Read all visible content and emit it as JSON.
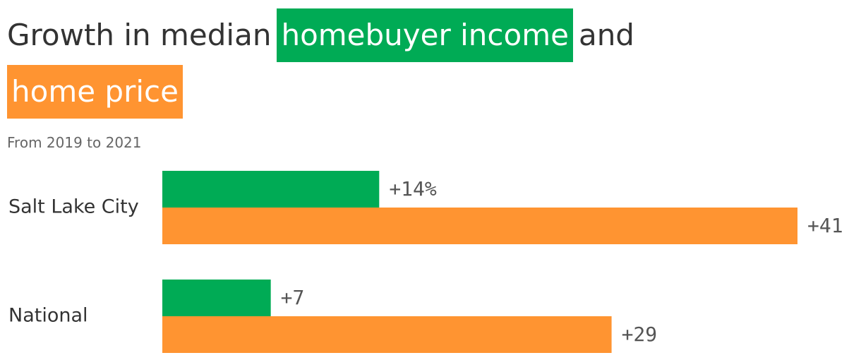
{
  "chart_data": {
    "type": "hbar",
    "title_parts": [
      "Growth in median",
      "and"
    ],
    "subtitle": "From 2019 to 2021",
    "categories": [
      "Salt Lake City",
      "National"
    ],
    "series": [
      {
        "name": "homebuyer income",
        "color": "#00ab55",
        "values": [
          14,
          7
        ],
        "value_labels": [
          "+14%",
          "+7"
        ]
      },
      {
        "name": "home price",
        "color": "#ff9431",
        "values": [
          41,
          29
        ],
        "value_labels": [
          "+41",
          "+29"
        ]
      }
    ]
  }
}
